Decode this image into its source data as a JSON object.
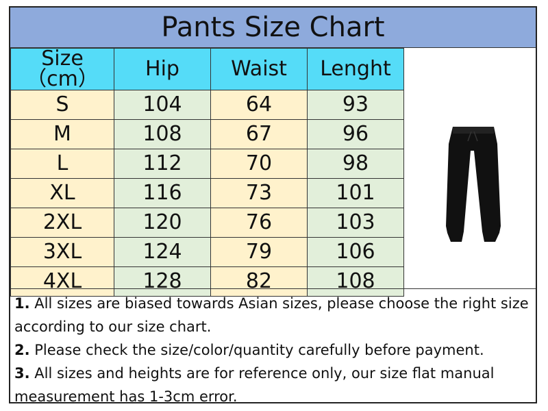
{
  "title": "Pants Size Chart",
  "headers": [
    "Size（cm）",
    "Hip",
    "Waist",
    "Lenght"
  ],
  "rows": [
    [
      "S",
      "104",
      "64",
      "93"
    ],
    [
      "M",
      "108",
      "67",
      "96"
    ],
    [
      "L",
      "112",
      "70",
      "98"
    ],
    [
      "XL",
      "116",
      "73",
      "101"
    ],
    [
      "2XL",
      "120",
      "76",
      "103"
    ],
    [
      "3XL",
      "124",
      "79",
      "106"
    ],
    [
      "4XL",
      "128",
      "82",
      "108"
    ]
  ],
  "notes": [
    {
      "num": "1.",
      "text": " All sizes are biased towards Asian sizes, please choose the right size according to our size chart."
    },
    {
      "num": "2.",
      "text": " Please check the size/color/quantity carefully before payment."
    },
    {
      "num": "3.",
      "text": " All sizes and heights are for reference only, our size flat manual measurement has 1-3cm error."
    }
  ],
  "colors": {
    "title_bg": "#8eaadc",
    "header_bg": "#55dcf8",
    "yellow_cell": "#fff2cc",
    "green_cell": "#e2efda"
  },
  "image": "black-jogger-pants"
}
